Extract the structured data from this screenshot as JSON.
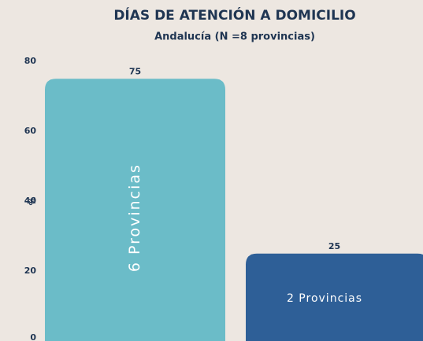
{
  "chart_data": {
    "type": "bar",
    "title": "DÍAS DE ATENCIÓN A DOMICILIO",
    "subtitle": "Andalucía (N =8 provincias)",
    "y_label": "%",
    "categories": [
      "6 Provincias",
      "2 Provincias"
    ],
    "values": [
      75,
      25
    ],
    "colors": [
      "#6bbcc8",
      "#2e5f97"
    ],
    "ylim": [
      0,
      80
    ],
    "yticks": [
      0,
      20,
      40,
      60,
      80
    ],
    "grid": false
  }
}
